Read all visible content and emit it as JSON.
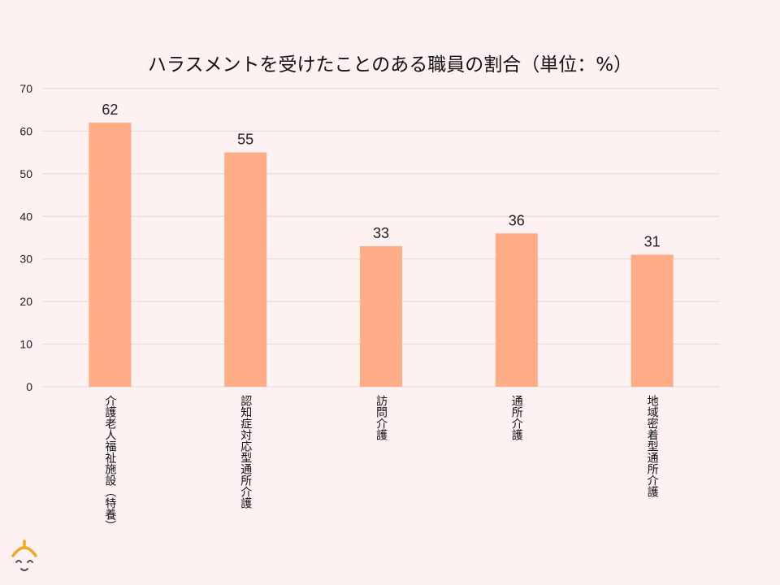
{
  "chart_data": {
    "type": "bar",
    "title": "ハラスメントを受けたことのある職員の割合（単位：%）",
    "categories": [
      "介護老人福祉施設（特養）",
      "認知症対応型通所介護",
      "訪問介護",
      "通所介護",
      "地域密着型通所介護"
    ],
    "values": [
      62,
      55,
      33,
      36,
      31
    ],
    "ylim": [
      0,
      70
    ],
    "yticks": [
      0,
      10,
      20,
      30,
      40,
      50,
      60,
      70
    ],
    "xlabel": "",
    "ylabel": "",
    "grid": true,
    "bar_color": "#ffad86"
  },
  "logo": {
    "icon": "smiling-face-logo-icon",
    "color": "#f5a623"
  }
}
